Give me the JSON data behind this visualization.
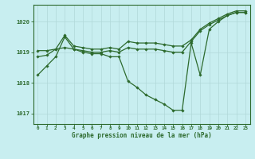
{
  "title": "Graphe pression niveau de la mer (hPa)",
  "bg_color": "#c8eef0",
  "line_color": "#2d6a2d",
  "grid_color": "#b0d8d8",
  "xlim": [
    -0.5,
    23.5
  ],
  "ylim": [
    1016.65,
    1020.55
  ],
  "yticks": [
    1017,
    1018,
    1019,
    1020
  ],
  "xticks": [
    0,
    1,
    2,
    3,
    4,
    5,
    6,
    7,
    8,
    9,
    10,
    11,
    12,
    13,
    14,
    15,
    16,
    17,
    18,
    19,
    20,
    21,
    22,
    23
  ],
  "series1_x": [
    0,
    1,
    2,
    3,
    4,
    5,
    6,
    7,
    8,
    9,
    10,
    11,
    12,
    13,
    14,
    15,
    16,
    17,
    18,
    19,
    20,
    21,
    22,
    23
  ],
  "series1_y": [
    1018.25,
    1018.55,
    1018.85,
    1019.5,
    1019.1,
    1019.0,
    1018.95,
    1018.95,
    1018.85,
    1018.85,
    1018.05,
    1017.85,
    1017.6,
    1017.45,
    1017.3,
    1017.1,
    1017.1,
    1019.3,
    1018.25,
    1019.75,
    1020.0,
    1020.2,
    1020.3,
    1020.3
  ],
  "series2_x": [
    0,
    1,
    2,
    3,
    4,
    5,
    6,
    7,
    8,
    9,
    10,
    11,
    12,
    13,
    14,
    15,
    16,
    17,
    18,
    19,
    20,
    21,
    22,
    23
  ],
  "series2_y": [
    1018.85,
    1018.9,
    1019.1,
    1019.15,
    1019.1,
    1019.05,
    1019.0,
    1019.0,
    1019.05,
    1019.0,
    1019.15,
    1019.1,
    1019.1,
    1019.1,
    1019.05,
    1019.0,
    1019.0,
    1019.35,
    1019.7,
    1019.9,
    1020.05,
    1020.2,
    1020.3,
    1020.3
  ],
  "series3_x": [
    0,
    1,
    2,
    3,
    4,
    5,
    6,
    7,
    8,
    9,
    10,
    11,
    12,
    13,
    14,
    15,
    16,
    17,
    18,
    19,
    20,
    21,
    22,
    23
  ],
  "series3_y": [
    1019.05,
    1019.05,
    1019.1,
    1019.55,
    1019.2,
    1019.15,
    1019.1,
    1019.1,
    1019.15,
    1019.1,
    1019.35,
    1019.3,
    1019.3,
    1019.3,
    1019.25,
    1019.2,
    1019.2,
    1019.4,
    1019.75,
    1019.95,
    1020.1,
    1020.25,
    1020.35,
    1020.35
  ]
}
